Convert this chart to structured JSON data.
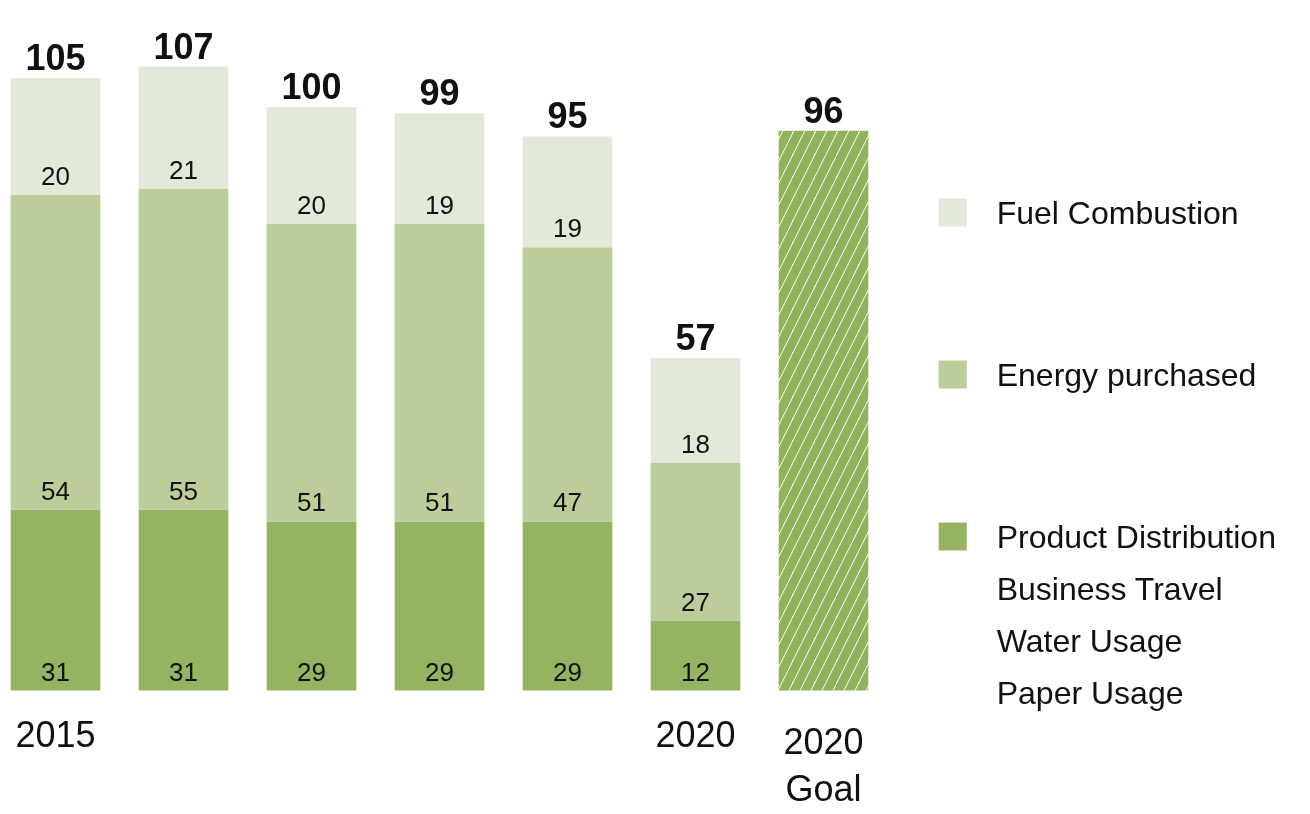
{
  "chart_data": {
    "type": "bar",
    "stacked": true,
    "categories": [
      "2015",
      null,
      null,
      null,
      null,
      "2020",
      "2020\nGoal"
    ],
    "series": [
      {
        "name": "Product Distribution\nBusiness Travel\nWater Usage\nPaper Usage",
        "color": "#94b462",
        "values": [
          31,
          31,
          29,
          29,
          29,
          12,
          null
        ],
        "value_labels": [
          "31",
          "31",
          "29",
          "29",
          "29",
          "12",
          null
        ]
      },
      {
        "name": "Energy purchased",
        "color": "#bccd9a",
        "values": [
          54,
          55,
          51,
          51,
          47,
          27,
          null
        ],
        "value_labels": [
          "54",
          "55",
          "51",
          "51",
          "47",
          "27",
          null
        ]
      },
      {
        "name": "Fuel Combustion",
        "color": "#e2e9d8",
        "values": [
          20,
          21,
          20,
          19,
          19,
          18,
          null
        ],
        "value_labels": [
          "20",
          "21",
          "20",
          "19",
          "19",
          "18",
          null
        ]
      },
      {
        "color": "#8fb25a",
        "values": [
          null,
          null,
          null,
          null,
          null,
          null,
          96
        ]
      }
    ],
    "totals": [
      "105",
      "107",
      "100",
      "99",
      "95",
      "57",
      "96"
    ],
    "legend": "right",
    "grid": false
  }
}
